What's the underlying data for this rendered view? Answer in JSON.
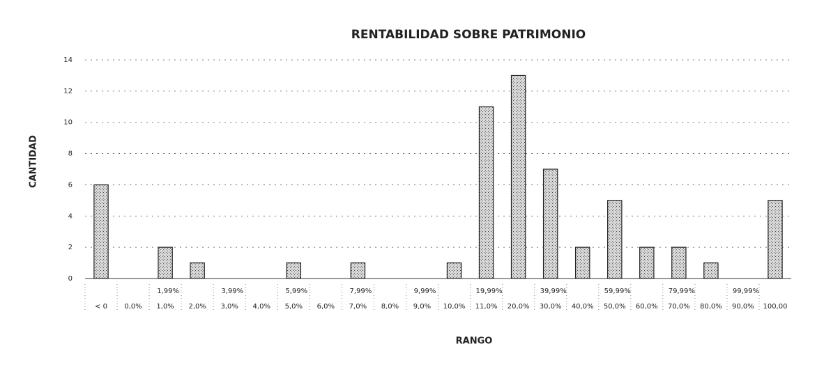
{
  "chart_data": {
    "type": "bar",
    "title": "RENTABILIDAD SOBRE PATRIMONIO",
    "x_label": "RANGO",
    "y_label": "CANTIDAD",
    "categories": [
      "< 0",
      "0,0%",
      "1,0%",
      "2,0%",
      "3,0%",
      "4,0%",
      "5,0%",
      "6,0%",
      "7,0%",
      "8,0%",
      "9,0%",
      "10,0%",
      "11,0%",
      "20,0%",
      "30,0%",
      "40,0%",
      "50,0%",
      "60,0%",
      "70,0%",
      "80,0%",
      "90,0%",
      "100,00"
    ],
    "category_upper": [
      null,
      null,
      "1,99%",
      null,
      "3,99%",
      null,
      "5,99%",
      null,
      "7,99%",
      null,
      "9,99%",
      null,
      "19,99%",
      null,
      "39,99%",
      null,
      "59,99%",
      null,
      "79,99%",
      null,
      "99,99%",
      null
    ],
    "values": [
      6,
      0,
      2,
      1,
      0,
      0,
      1,
      0,
      1,
      0,
      0,
      1,
      11,
      13,
      7,
      2,
      5,
      2,
      2,
      1,
      0,
      5
    ],
    "color": "#b0b0b0",
    "ylim": [
      0,
      14
    ],
    "yticks": [
      0,
      2,
      4,
      6,
      8,
      10,
      12,
      14
    ],
    "grid": true
  }
}
